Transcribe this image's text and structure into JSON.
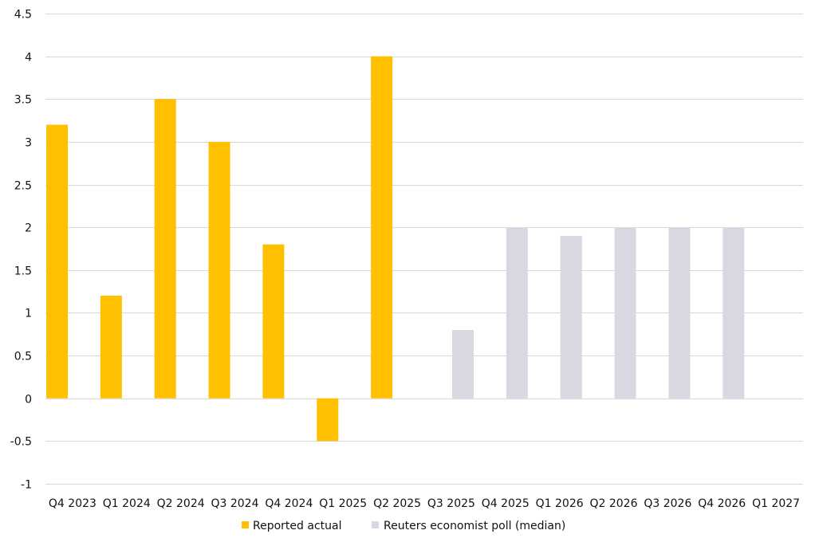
{
  "chart_data": {
    "type": "bar",
    "categories": [
      "Q4 2023",
      "Q1 2024",
      "Q2 2024",
      "Q3 2024",
      "Q4 2024",
      "Q1 2025",
      "Q2 2025",
      "Q3 2025",
      "Q4 2025",
      "Q1 2026",
      "Q2 2026",
      "Q3 2026",
      "Q4 2026",
      "Q1 2027"
    ],
    "series": [
      {
        "name": "Reported actual",
        "color": "#FFC000",
        "values": [
          3.2,
          1.2,
          3.5,
          3.0,
          1.8,
          -0.5,
          4.0,
          null,
          null,
          null,
          null,
          null,
          null,
          null
        ]
      },
      {
        "name": "Reuters economist poll (median)",
        "color": "#D9D8E2",
        "values": [
          null,
          null,
          null,
          null,
          null,
          null,
          null,
          0.8,
          2.0,
          1.9,
          2.0,
          2.0,
          2.0,
          null
        ]
      }
    ],
    "ylim": [
      -1,
      4.5
    ],
    "yticks": [
      "4.5",
      "4",
      "3.5",
      "3",
      "2.5",
      "2",
      "1.5",
      "1",
      "0.5",
      "0",
      "-0.5",
      "-1"
    ],
    "grid": true,
    "legend": "bottom"
  }
}
